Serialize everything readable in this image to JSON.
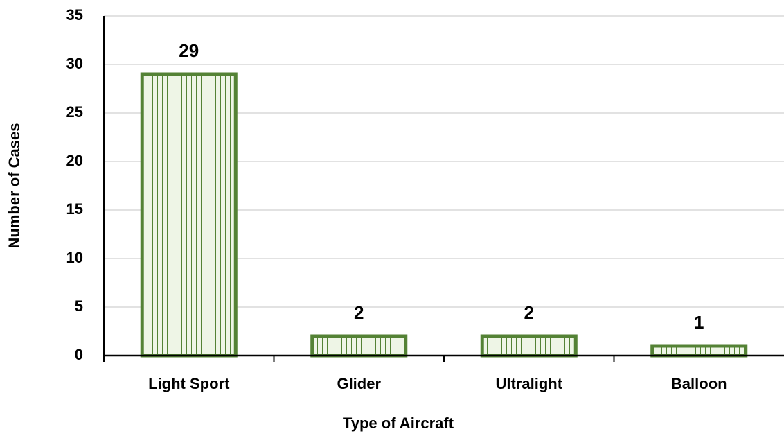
{
  "chart_data": {
    "type": "bar",
    "categories": [
      "Light Sport",
      "Glider",
      "Ultralight",
      "Balloon"
    ],
    "values": [
      29,
      2,
      2,
      1
    ],
    "color": "#548235",
    "xlabel": "Type of Aircraft",
    "ylabel": "Number of Cases",
    "ylim": [
      0,
      35
    ],
    "yticks": [
      0,
      5,
      10,
      15,
      20,
      25,
      30,
      35
    ],
    "grid": true
  }
}
